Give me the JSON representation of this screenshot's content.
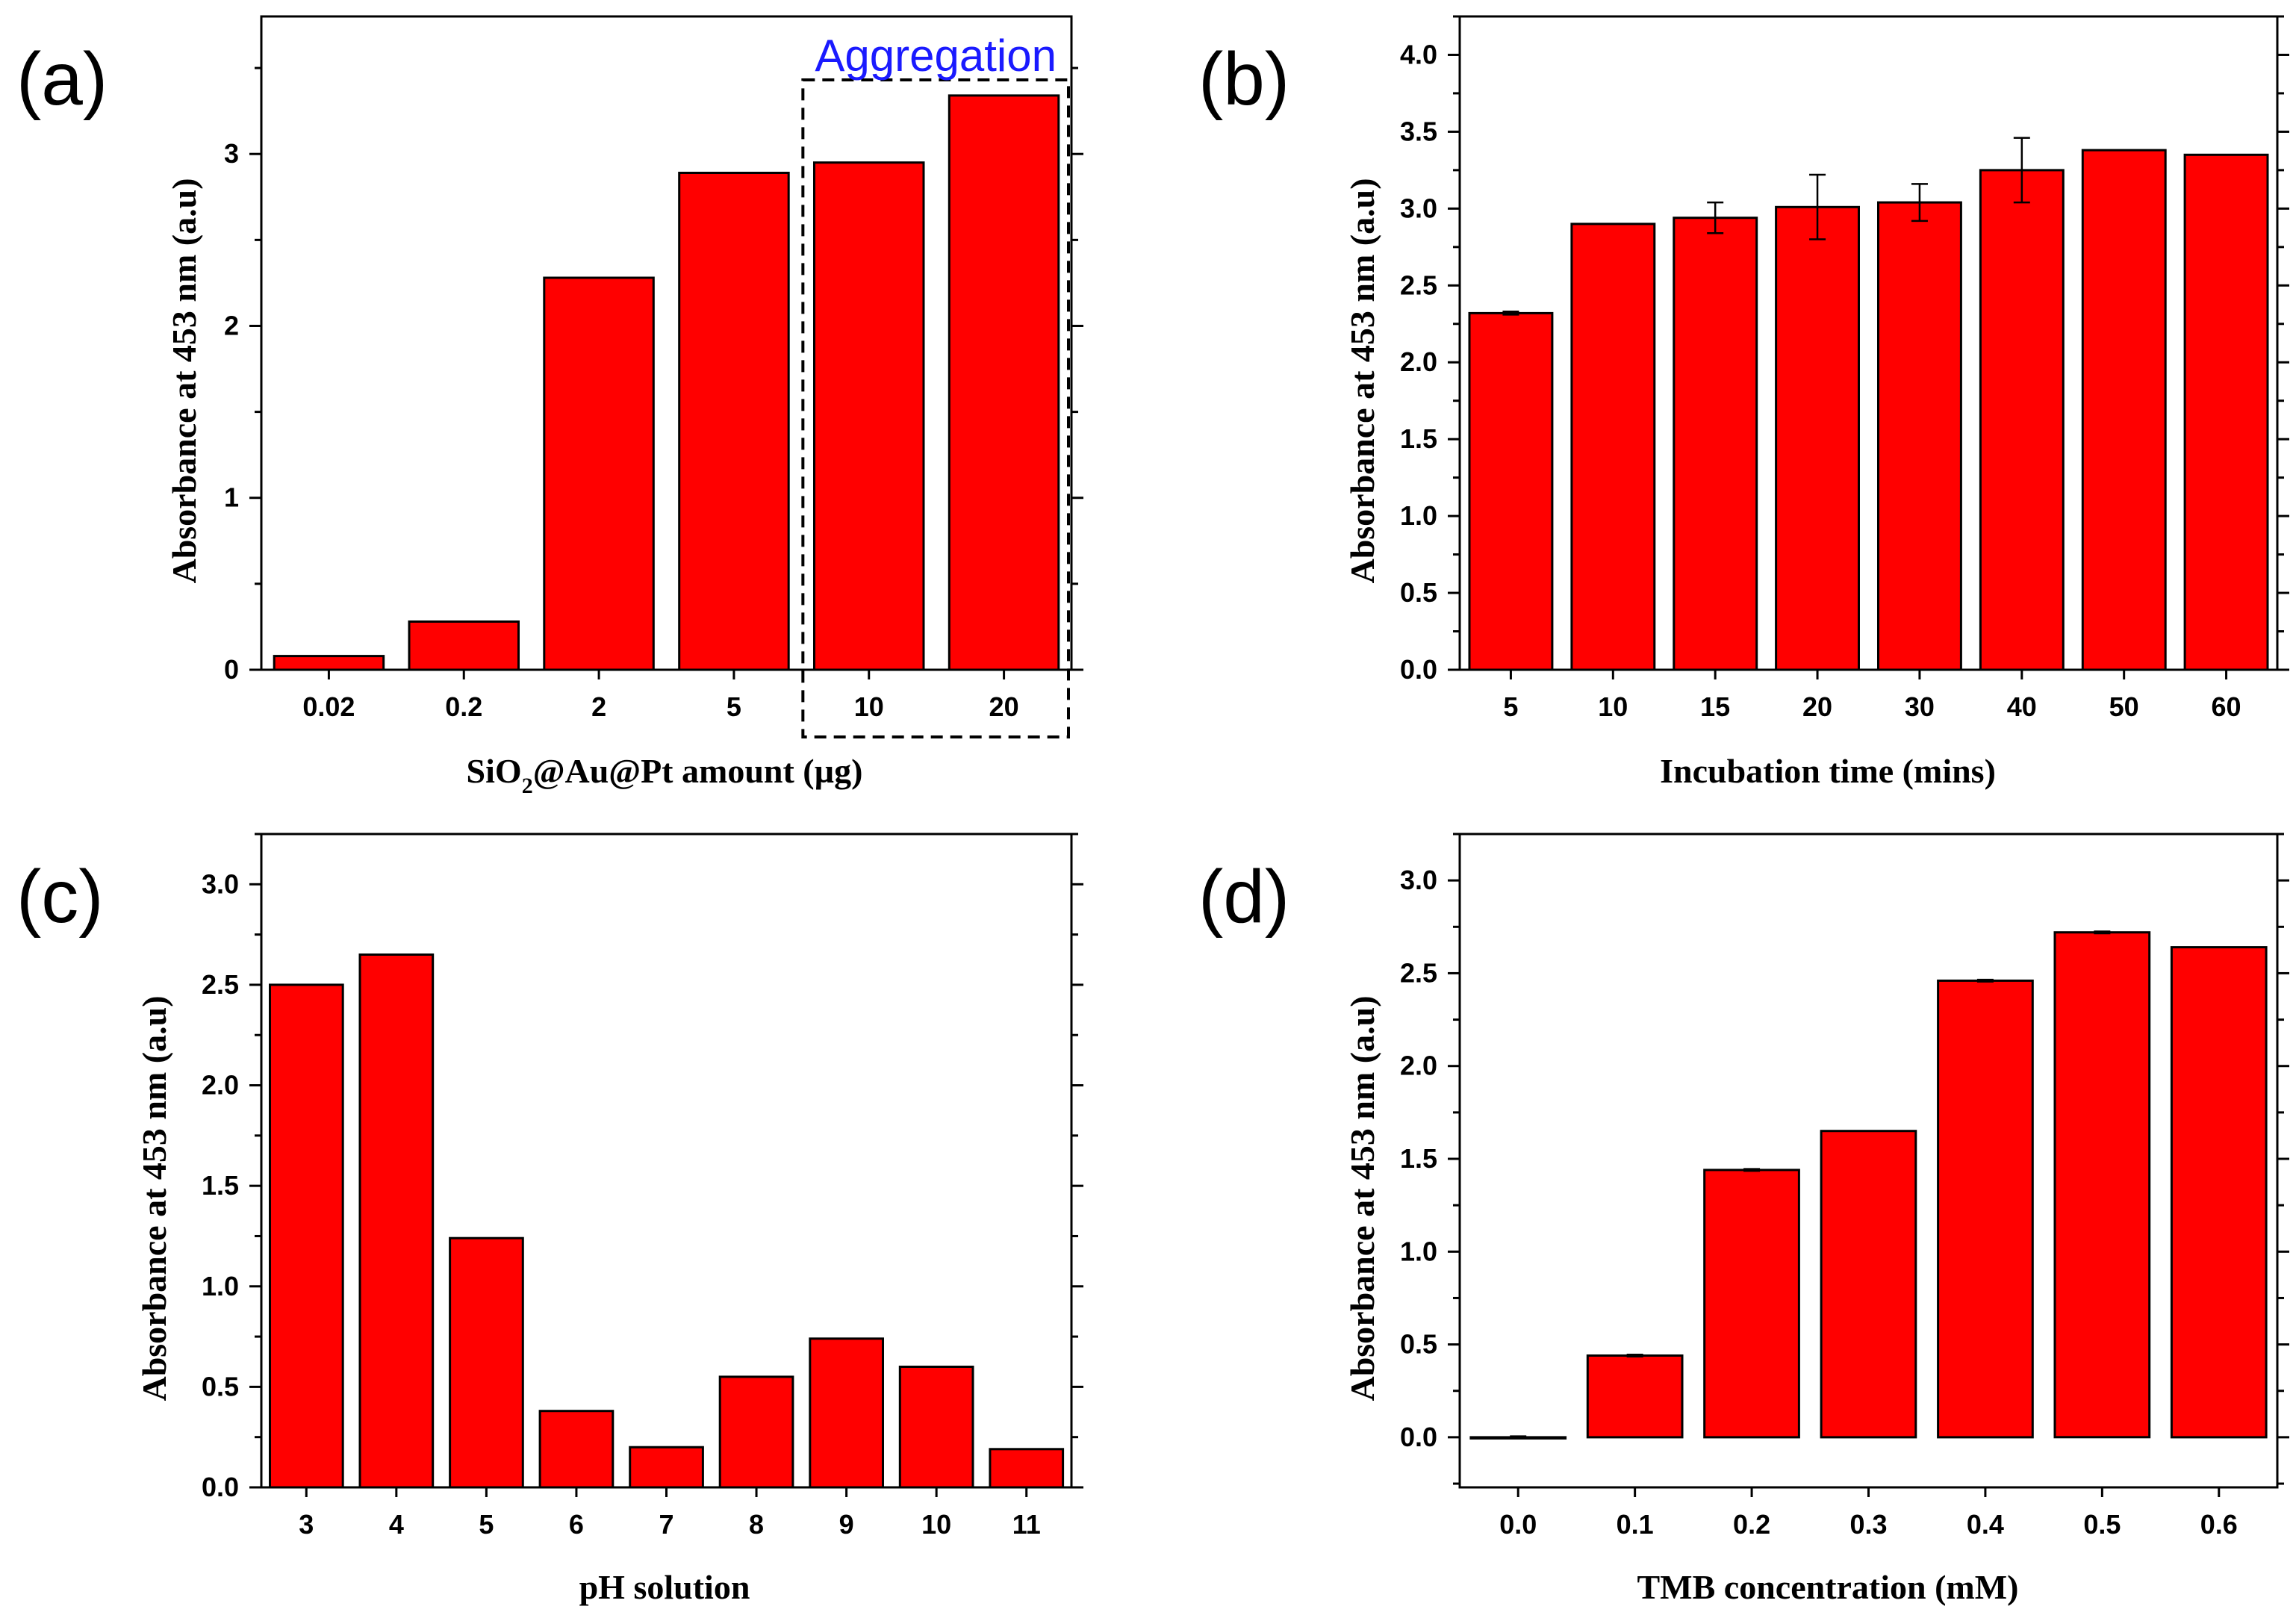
{
  "colors": {
    "bar": "#ff0000",
    "annotation": "#1a1aff",
    "axis": "#000000"
  },
  "chart_data": [
    {
      "id": "a",
      "panel_label": "(a)",
      "type": "bar",
      "categories": [
        "0.02",
        "0.2",
        "2",
        "5",
        "10",
        "20"
      ],
      "values": [
        0.08,
        0.28,
        2.28,
        2.89,
        2.95,
        3.34
      ],
      "errors": null,
      "xlabel_parts": [
        "SiO",
        "2",
        "@Au@Pt amount (µg)"
      ],
      "ylabel": "Absorbance at 453 nm (a.u)",
      "ylim": [
        0,
        3.8
      ],
      "yticks": [
        0,
        1,
        2,
        3
      ],
      "ytick_labels": [
        "0",
        "1",
        "2",
        "3"
      ],
      "ytick_decimals": 0,
      "minor_ticks": true,
      "annotation": {
        "text": "Aggregation",
        "from_category": "10",
        "to_category": "20"
      }
    },
    {
      "id": "b",
      "panel_label": "(b)",
      "type": "bar",
      "categories": [
        "5",
        "10",
        "15",
        "20",
        "30",
        "40",
        "50",
        "60"
      ],
      "values": [
        2.32,
        2.9,
        2.94,
        3.01,
        3.04,
        3.25,
        3.38,
        3.35
      ],
      "errors": [
        0.01,
        0.0,
        0.1,
        0.21,
        0.12,
        0.21,
        0.0,
        0.0
      ],
      "xlabel": "Incubation time (mins)",
      "ylabel": "Absorbance at 453 nm (a.u)",
      "ylim": [
        0,
        4.25
      ],
      "yticks": [
        0.0,
        0.5,
        1.0,
        1.5,
        2.0,
        2.5,
        3.0,
        3.5,
        4.0
      ],
      "ytick_labels": [
        "0.0",
        "0.5",
        "1.0",
        "1.5",
        "2.0",
        "2.5",
        "3.0",
        "3.5",
        "4.0"
      ],
      "ytick_decimals": 1,
      "minor_ticks": true
    },
    {
      "id": "c",
      "panel_label": "(c)",
      "type": "bar",
      "categories": [
        "3",
        "4",
        "5",
        "6",
        "7",
        "8",
        "9",
        "10",
        "11"
      ],
      "values": [
        2.5,
        2.65,
        1.24,
        0.38,
        0.2,
        0.55,
        0.74,
        0.6,
        0.19
      ],
      "errors": null,
      "xlabel": "pH solution",
      "ylabel": "Absorbance at 453 nm (a.u)",
      "ylim": [
        0,
        3.25
      ],
      "yticks": [
        0.0,
        0.5,
        1.0,
        1.5,
        2.0,
        2.5,
        3.0
      ],
      "ytick_labels": [
        "0.0",
        "0.5",
        "1.0",
        "1.5",
        "2.0",
        "2.5",
        "3.0"
      ],
      "ytick_decimals": 1,
      "minor_ticks": true
    },
    {
      "id": "d",
      "panel_label": "(d)",
      "type": "bar",
      "categories": [
        "0.0",
        "0.1",
        "0.2",
        "0.3",
        "0.4",
        "0.5",
        "0.6"
      ],
      "values": [
        0.0,
        0.44,
        1.44,
        1.65,
        2.46,
        2.72,
        2.64
      ],
      "errors": [
        0.005,
        0.005,
        0.005,
        0.0,
        0.005,
        0.005,
        0.0
      ],
      "xlabel": "TMB concentration (mM)",
      "ylabel": "Absorbance at 453 nm (a.u)",
      "ylim": [
        -0.27,
        3.25
      ],
      "yticks": [
        0.0,
        0.5,
        1.0,
        1.5,
        2.0,
        2.5,
        3.0
      ],
      "ytick_labels": [
        "0.0",
        "0.5",
        "1.0",
        "1.5",
        "2.0",
        "2.5",
        "3.0"
      ],
      "ytick_decimals": 1,
      "minor_ticks": true
    }
  ]
}
